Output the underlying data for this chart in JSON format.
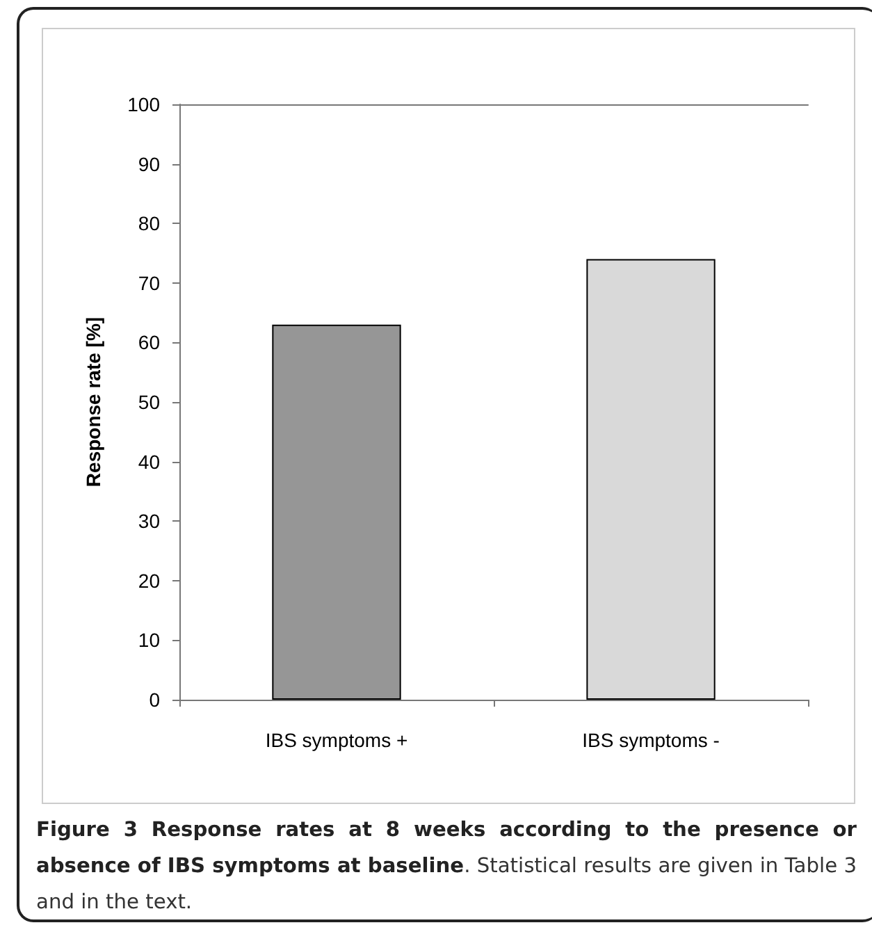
{
  "chart_data": {
    "type": "bar",
    "title": "Figure 3 Response rates at 8 weeks according to the presence or absence of IBS symptoms at baseline",
    "annotations": [
      ". Statistical results are given in Table 3 and in the text."
    ],
    "ylabel": "Response rate [%]",
    "categories": [
      "IBS symptoms +",
      "IBS symptoms -"
    ],
    "values": [
      63,
      74
    ],
    "colors": [
      "#969696",
      "#d9d9d9"
    ],
    "ylim": [
      0,
      100
    ],
    "yticks": [
      0,
      10,
      20,
      30,
      40,
      50,
      60,
      70,
      80,
      90,
      100
    ],
    "grid": false
  }
}
